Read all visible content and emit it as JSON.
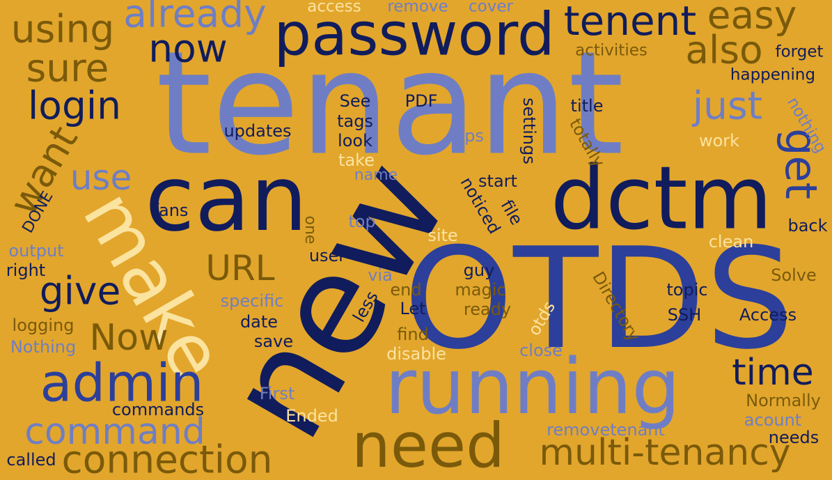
{
  "palette": {
    "background": "#e2a62c",
    "navy": "#101c5c",
    "blue": "#2c3f9a",
    "lavender": "#6f7ec4",
    "olive": "#7a5a0a",
    "cream": "#fbe3a0"
  },
  "words": [
    "tenant",
    "new",
    "OTDS",
    "can",
    "dctm",
    "running",
    "make",
    "password",
    "need",
    "admin",
    "tenent",
    "easy",
    "using",
    "already",
    "also",
    "now",
    "sure",
    "login",
    "just",
    "get",
    "want",
    "use",
    "URL",
    "give",
    "Now",
    "connection",
    "command",
    "multi-tenancy",
    "time",
    "access",
    "remove",
    "cover",
    "forget",
    "activities",
    "happening",
    "nothing",
    "See",
    "PDF",
    "tags",
    "look",
    "title",
    "updates",
    "settings",
    "totally",
    "tips",
    "work",
    "take",
    "name",
    "start",
    "noticed",
    "file",
    "fans",
    "DONE",
    "one",
    "top",
    "site",
    "back",
    "output",
    "user",
    "clean",
    "right",
    "Directory",
    "via",
    "guy",
    "less",
    "end",
    "magic",
    "topic",
    "Solve",
    "specific",
    "ready",
    "Let",
    "otds",
    "SSH",
    "Access",
    "logging",
    "date",
    "find",
    "Nothing",
    "save",
    "disable",
    "close",
    "First",
    "Normally",
    "commands",
    "Ended",
    "removetenant",
    "acount",
    "needs",
    "called"
  ]
}
